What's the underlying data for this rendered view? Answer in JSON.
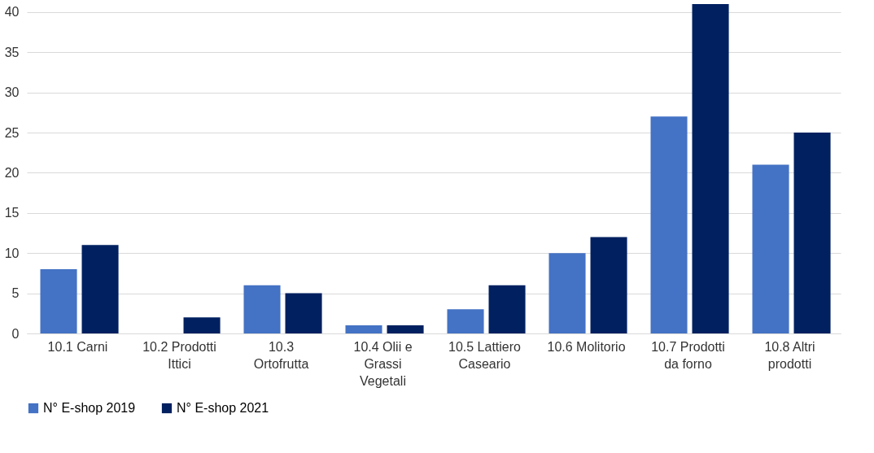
{
  "chart_data": {
    "type": "bar",
    "categories": [
      "10.1 Carni",
      "10.2 Prodotti Ittici",
      "10.3 Ortofrutta",
      "10.4 Olii e Grassi Vegetali",
      "10.5 Lattiero Caseario",
      "10.6 Molitorio",
      "10.7 Prodotti da forno",
      "10.8 Altri prodotti"
    ],
    "series": [
      {
        "name": "N° E-shop 2019",
        "color": "#4472c4",
        "values": [
          8,
          0,
          6,
          1,
          3,
          10,
          27,
          21
        ]
      },
      {
        "name": "N° E-shop 2021",
        "color": "#002060",
        "values": [
          11,
          2,
          5,
          1,
          6,
          12,
          41,
          25
        ]
      }
    ],
    "ylim": [
      0,
      41
    ],
    "yticks": [
      0,
      5,
      10,
      15,
      20,
      25,
      30,
      35,
      40
    ],
    "grid": "y",
    "legend": "bottom"
  }
}
